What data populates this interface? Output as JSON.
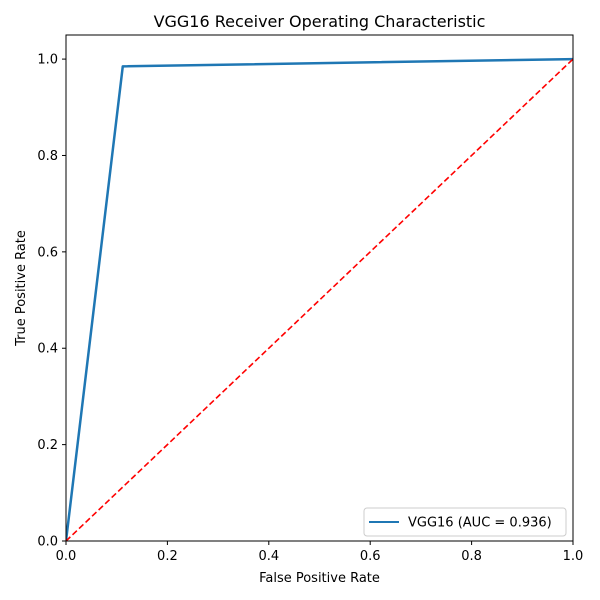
{
  "chart_data": {
    "type": "line",
    "title": "VGG16 Receiver Operating Characteristic",
    "xlabel": "False Positive Rate",
    "ylabel": "True Positive Rate",
    "xlim": [
      0.0,
      1.0
    ],
    "ylim": [
      0.0,
      1.05
    ],
    "xticks": [
      "0.0",
      "0.2",
      "0.4",
      "0.6",
      "0.8",
      "1.0"
    ],
    "yticks": [
      "0.0",
      "0.2",
      "0.4",
      "0.6",
      "0.8",
      "1.0"
    ],
    "grid": false,
    "legend_position": "bottom-right",
    "series": [
      {
        "name": "VGG16 (AUC = 0.936)",
        "color": "#1f77b4",
        "style": "solid",
        "x": [
          0.0,
          0.112,
          1.0
        ],
        "y": [
          0.0,
          0.985,
          1.0
        ]
      }
    ],
    "reference_line": {
      "color": "#ff0000",
      "style": "dashed",
      "x": [
        0.0,
        1.0
      ],
      "y": [
        0.0,
        1.0
      ]
    }
  }
}
